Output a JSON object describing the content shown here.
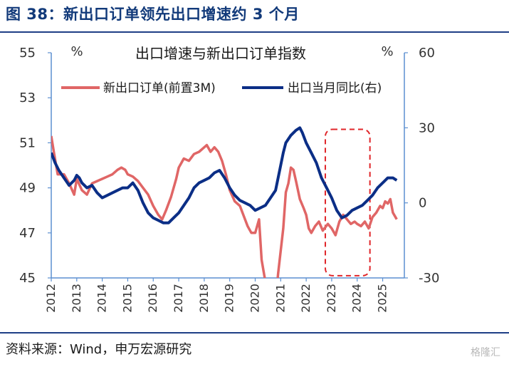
{
  "figure_title": "图 38：新出口订单领先出口增速约 3 个月",
  "source_note": "资料来源：Wind，申万宏源研究",
  "watermark": "格隆汇",
  "chart_data": {
    "type": "line",
    "title": "出口增速与新出口订单指数",
    "left_unit": "%",
    "right_unit": "%",
    "x_ticks": [
      "2012",
      "2013",
      "2014",
      "2015",
      "2016",
      "2017",
      "2018",
      "2019",
      "2020",
      "2021",
      "2022",
      "2023",
      "2024",
      "2025"
    ],
    "left_axis": {
      "ylim": [
        45,
        55
      ],
      "ticks": [
        45,
        47,
        49,
        51,
        53,
        55
      ]
    },
    "right_axis": {
      "ylim": [
        -30,
        60
      ],
      "ticks": [
        -30,
        0,
        30,
        60
      ]
    },
    "grid": false,
    "legend": "top",
    "highlight_box": {
      "x_start": 2022.75,
      "x_end": 2024.5,
      "left_y_low": 45.1,
      "left_y_high": 51.6,
      "style": "red-dashed"
    },
    "series": [
      {
        "name": "新出口订单(前置3M)",
        "axis": "left",
        "color": "#e06666",
        "points": [
          [
            2012.0,
            51.3
          ],
          [
            2012.1,
            50.6
          ],
          [
            2012.25,
            49.6
          ],
          [
            2012.5,
            49.6
          ],
          [
            2012.7,
            49.2
          ],
          [
            2012.9,
            48.7
          ],
          [
            2013.0,
            49.4
          ],
          [
            2013.2,
            48.9
          ],
          [
            2013.4,
            48.7
          ],
          [
            2013.6,
            49.2
          ],
          [
            2013.8,
            49.3
          ],
          [
            2014.0,
            49.4
          ],
          [
            2014.2,
            49.5
          ],
          [
            2014.4,
            49.6
          ],
          [
            2014.6,
            49.8
          ],
          [
            2014.75,
            49.9
          ],
          [
            2014.9,
            49.8
          ],
          [
            2015.0,
            49.6
          ],
          [
            2015.2,
            49.5
          ],
          [
            2015.4,
            49.3
          ],
          [
            2015.6,
            49.0
          ],
          [
            2015.8,
            48.7
          ],
          [
            2016.0,
            48.2
          ],
          [
            2016.2,
            47.8
          ],
          [
            2016.35,
            47.6
          ],
          [
            2016.5,
            48.0
          ],
          [
            2016.7,
            48.6
          ],
          [
            2016.9,
            49.4
          ],
          [
            2017.0,
            49.9
          ],
          [
            2017.2,
            50.3
          ],
          [
            2017.4,
            50.2
          ],
          [
            2017.6,
            50.5
          ],
          [
            2017.8,
            50.6
          ],
          [
            2018.0,
            50.8
          ],
          [
            2018.1,
            50.9
          ],
          [
            2018.25,
            50.6
          ],
          [
            2018.4,
            50.8
          ],
          [
            2018.55,
            50.6
          ],
          [
            2018.7,
            50.2
          ],
          [
            2018.85,
            49.6
          ],
          [
            2019.0,
            48.9
          ],
          [
            2019.2,
            48.4
          ],
          [
            2019.4,
            48.2
          ],
          [
            2019.5,
            47.9
          ],
          [
            2019.7,
            47.3
          ],
          [
            2019.85,
            47.0
          ],
          [
            2020.0,
            47.0
          ],
          [
            2020.15,
            47.6
          ],
          [
            2020.25,
            45.8
          ],
          [
            2020.45,
            44.5
          ],
          [
            2020.6,
            43.6
          ],
          [
            2020.8,
            44.0
          ],
          [
            2020.9,
            45.2
          ],
          [
            2021.0,
            46.2
          ],
          [
            2021.1,
            47.2
          ],
          [
            2021.2,
            48.8
          ],
          [
            2021.3,
            49.2
          ],
          [
            2021.4,
            49.9
          ],
          [
            2021.5,
            49.8
          ],
          [
            2021.6,
            49.3
          ],
          [
            2021.75,
            48.5
          ],
          [
            2021.9,
            48.1
          ],
          [
            2022.0,
            47.8
          ],
          [
            2022.1,
            47.2
          ],
          [
            2022.2,
            47.0
          ],
          [
            2022.35,
            47.3
          ],
          [
            2022.5,
            47.5
          ],
          [
            2022.65,
            47.1
          ],
          [
            2022.85,
            47.4
          ],
          [
            2023.0,
            47.2
          ],
          [
            2023.15,
            46.9
          ],
          [
            2023.3,
            47.5
          ],
          [
            2023.45,
            47.8
          ],
          [
            2023.6,
            47.6
          ],
          [
            2023.75,
            47.4
          ],
          [
            2023.9,
            47.5
          ],
          [
            2024.0,
            47.4
          ],
          [
            2024.15,
            47.3
          ],
          [
            2024.3,
            47.5
          ],
          [
            2024.45,
            47.2
          ],
          [
            2024.6,
            47.7
          ],
          [
            2024.75,
            47.9
          ],
          [
            2024.9,
            48.2
          ],
          [
            2025.0,
            48.1
          ],
          [
            2025.1,
            48.4
          ],
          [
            2025.2,
            48.3
          ],
          [
            2025.3,
            48.5
          ],
          [
            2025.4,
            47.9
          ],
          [
            2025.55,
            47.6
          ]
        ]
      },
      {
        "name": "出口当月同比(右)",
        "axis": "right",
        "color": "#0b2e86",
        "points": [
          [
            2012.0,
            20
          ],
          [
            2012.15,
            16
          ],
          [
            2012.3,
            13
          ],
          [
            2012.5,
            10
          ],
          [
            2012.7,
            7
          ],
          [
            2012.9,
            9
          ],
          [
            2013.0,
            11
          ],
          [
            2013.1,
            10
          ],
          [
            2013.2,
            8
          ],
          [
            2013.4,
            6
          ],
          [
            2013.6,
            7
          ],
          [
            2013.8,
            4
          ],
          [
            2014.0,
            2
          ],
          [
            2014.2,
            3
          ],
          [
            2014.4,
            4
          ],
          [
            2014.6,
            5
          ],
          [
            2014.8,
            6
          ],
          [
            2015.0,
            6
          ],
          [
            2015.2,
            8
          ],
          [
            2015.4,
            5
          ],
          [
            2015.6,
            0
          ],
          [
            2015.8,
            -4
          ],
          [
            2016.0,
            -6
          ],
          [
            2016.2,
            -7
          ],
          [
            2016.4,
            -8
          ],
          [
            2016.6,
            -8
          ],
          [
            2016.8,
            -6
          ],
          [
            2017.0,
            -4
          ],
          [
            2017.2,
            -1
          ],
          [
            2017.4,
            2
          ],
          [
            2017.6,
            6
          ],
          [
            2017.8,
            8
          ],
          [
            2018.0,
            9
          ],
          [
            2018.2,
            10
          ],
          [
            2018.4,
            12
          ],
          [
            2018.6,
            13
          ],
          [
            2018.8,
            10
          ],
          [
            2019.0,
            6
          ],
          [
            2019.2,
            3
          ],
          [
            2019.4,
            1
          ],
          [
            2019.6,
            0
          ],
          [
            2019.8,
            -1
          ],
          [
            2020.0,
            -3
          ],
          [
            2020.2,
            -2
          ],
          [
            2020.4,
            -1
          ],
          [
            2020.6,
            2
          ],
          [
            2020.8,
            5
          ],
          [
            2021.0,
            15
          ],
          [
            2021.1,
            20
          ],
          [
            2021.2,
            24
          ],
          [
            2021.4,
            27
          ],
          [
            2021.6,
            29
          ],
          [
            2021.75,
            30
          ],
          [
            2021.85,
            28
          ],
          [
            2022.0,
            24
          ],
          [
            2022.2,
            20
          ],
          [
            2022.4,
            16
          ],
          [
            2022.6,
            10
          ],
          [
            2022.8,
            6
          ],
          [
            2023.0,
            2
          ],
          [
            2023.2,
            -3
          ],
          [
            2023.4,
            -6
          ],
          [
            2023.6,
            -5
          ],
          [
            2023.8,
            -3
          ],
          [
            2024.0,
            -2
          ],
          [
            2024.2,
            -1
          ],
          [
            2024.4,
            1
          ],
          [
            2024.6,
            3
          ],
          [
            2024.8,
            6
          ],
          [
            2025.0,
            8
          ],
          [
            2025.2,
            10
          ],
          [
            2025.4,
            10
          ],
          [
            2025.55,
            9
          ]
        ]
      }
    ]
  }
}
